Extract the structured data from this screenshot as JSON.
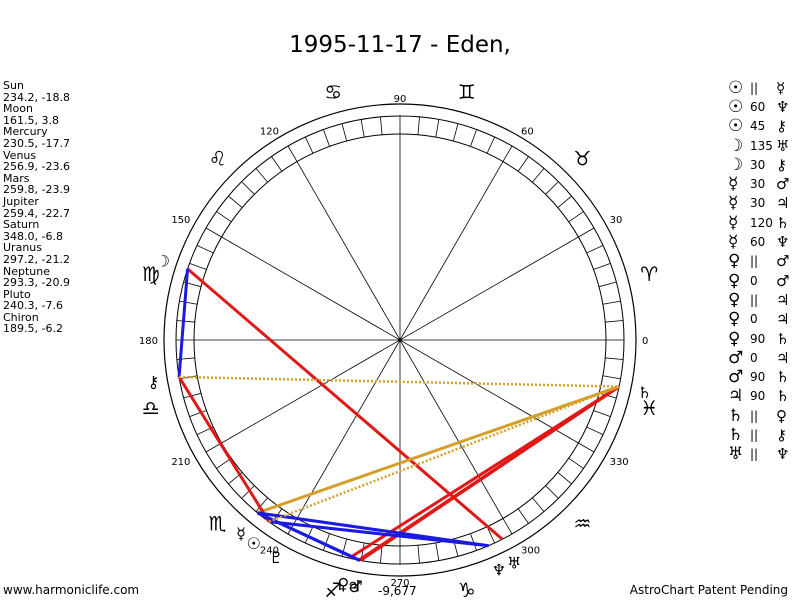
{
  "title": "1995-11-17 - Eden,",
  "footer": {
    "left": "www.harmoniclife.com",
    "right": "AstroChart Patent Pending",
    "center_value": "-9,677"
  },
  "planets": [
    {
      "name": "Sun",
      "coords": "234.2, -18.8"
    },
    {
      "name": "Moon",
      "coords": "161.5, 3.8"
    },
    {
      "name": "Mercury",
      "coords": "230.5, -17.7"
    },
    {
      "name": "Venus",
      "coords": "256.9, -23.6"
    },
    {
      "name": "Mars",
      "coords": "259.8, -23.9"
    },
    {
      "name": "Jupiter",
      "coords": "259.4, -22.7"
    },
    {
      "name": "Saturn",
      "coords": "348.0, -6.8"
    },
    {
      "name": "Uranus",
      "coords": "297.2, -21.2"
    },
    {
      "name": "Neptune",
      "coords": "293.3, -20.9"
    },
    {
      "name": "Pluto",
      "coords": "240.3, -7.6"
    },
    {
      "name": "Chiron",
      "coords": "189.5, -6.2"
    }
  ],
  "aspects": [
    {
      "p1": "☉",
      "sym": "||",
      "p2": "☿"
    },
    {
      "p1": "☉",
      "sym": "60",
      "p2": "♆"
    },
    {
      "p1": "☉",
      "sym": "45",
      "p2": "⚷"
    },
    {
      "p1": "☽",
      "sym": "135",
      "p2": "♅"
    },
    {
      "p1": "☽",
      "sym": "30",
      "p2": "⚷"
    },
    {
      "p1": "☿",
      "sym": "30",
      "p2": "♂"
    },
    {
      "p1": "☿",
      "sym": "30",
      "p2": "♃"
    },
    {
      "p1": "☿",
      "sym": "120",
      "p2": "♄"
    },
    {
      "p1": "☿",
      "sym": "60",
      "p2": "♆"
    },
    {
      "p1": "♀",
      "sym": "||",
      "p2": "♂"
    },
    {
      "p1": "♀",
      "sym": "0",
      "p2": "♂"
    },
    {
      "p1": "♀",
      "sym": "||",
      "p2": "♃"
    },
    {
      "p1": "♀",
      "sym": "0",
      "p2": "♃"
    },
    {
      "p1": "♀",
      "sym": "90",
      "p2": "♄"
    },
    {
      "p1": "♂",
      "sym": "0",
      "p2": "♃"
    },
    {
      "p1": "♂",
      "sym": "90",
      "p2": "♄"
    },
    {
      "p1": "♃",
      "sym": "90",
      "p2": "♄"
    },
    {
      "p1": "♄",
      "sym": "||",
      "p2": "♀"
    },
    {
      "p1": "♄",
      "sym": "||",
      "p2": "⚷"
    },
    {
      "p1": "♅",
      "sym": "||",
      "p2": "♆"
    }
  ],
  "wheel": {
    "degree_labels": [
      "0",
      "30",
      "60",
      "90",
      "120",
      "150",
      "180",
      "210",
      "240",
      "270",
      "300",
      "330"
    ],
    "sign_glyphs": [
      "♈",
      "♉",
      "♊",
      "♋",
      "♌",
      "♍",
      "♎",
      "♏",
      "♐",
      "♑",
      "♒",
      "♓"
    ],
    "planet_positions": [
      {
        "glyph": "☉",
        "lon": 234.2
      },
      {
        "glyph": "☽",
        "lon": 161.5
      },
      {
        "glyph": "☿",
        "lon": 230.5
      },
      {
        "glyph": "♀",
        "lon": 256.9
      },
      {
        "glyph": "♂",
        "lon": 259.8
      },
      {
        "glyph": "♃",
        "lon": 259.4
      },
      {
        "glyph": "♄",
        "lon": 348.0
      },
      {
        "glyph": "♅",
        "lon": 297.2
      },
      {
        "glyph": "♆",
        "lon": 293.3
      },
      {
        "glyph": "♇",
        "lon": 240.3
      },
      {
        "glyph": "⚷",
        "lon": 189.5
      }
    ],
    "aspect_lines": [
      {
        "from": 256.9,
        "to": 348.0,
        "color": "#e01818",
        "style": "solid"
      },
      {
        "from": 259.8,
        "to": 348.0,
        "color": "#e01818",
        "style": "solid"
      },
      {
        "from": 259.4,
        "to": 348.0,
        "color": "#e01818",
        "style": "solid"
      },
      {
        "from": 161.5,
        "to": 297.2,
        "color": "#e01818",
        "style": "solid"
      },
      {
        "from": 230.5,
        "to": 348.0,
        "color": "#d4a02a",
        "style": "solid"
      },
      {
        "from": 189.5,
        "to": 234.2,
        "color": "#e01818",
        "style": "solid"
      },
      {
        "from": 234.2,
        "to": 293.3,
        "color": "#1a1ae0",
        "style": "solid"
      },
      {
        "from": 230.5,
        "to": 293.3,
        "color": "#1a1ae0",
        "style": "solid"
      },
      {
        "from": 230.5,
        "to": 259.8,
        "color": "#1a1ae0",
        "style": "solid"
      },
      {
        "from": 230.5,
        "to": 259.4,
        "color": "#1a1ae0",
        "style": "solid"
      },
      {
        "from": 161.5,
        "to": 189.5,
        "color": "#1a1ae0",
        "style": "solid"
      },
      {
        "from": 189.5,
        "to": 348.0,
        "color": "#d4a02a",
        "style": "dotted"
      },
      {
        "from": 234.2,
        "to": 348.0,
        "color": "#d4a02a",
        "style": "dotted"
      }
    ]
  }
}
